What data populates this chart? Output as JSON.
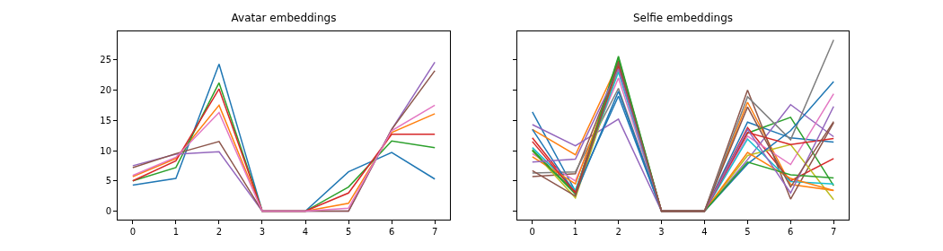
{
  "chart_data": [
    {
      "type": "line",
      "title": "Avatar embeddings",
      "x": [
        0,
        1,
        2,
        3,
        4,
        5,
        6,
        7
      ],
      "xlim": [
        -0.35,
        7.35
      ],
      "xticks": [
        0,
        1,
        2,
        3,
        4,
        5,
        6,
        7
      ],
      "ylim": [
        -1.4,
        29.7
      ],
      "yticks": [
        0,
        5,
        10,
        15,
        20,
        25
      ],
      "grid": false,
      "series": [
        {
          "color": "#1f77b4",
          "values": [
            4.3,
            5.4,
            24.3,
            0,
            0,
            6.5,
            9.7,
            5.3
          ]
        },
        {
          "color": "#ff7f0e",
          "values": [
            5.7,
            8.7,
            17.5,
            0,
            0,
            1.3,
            13,
            16.1
          ]
        },
        {
          "color": "#2ca02c",
          "values": [
            5,
            7.2,
            21.2,
            0,
            0,
            4,
            11.6,
            10.5
          ]
        },
        {
          "color": "#d62728",
          "values": [
            5,
            8.3,
            20.2,
            0,
            0,
            3,
            12.7,
            12.7
          ]
        },
        {
          "color": "#9467bd",
          "values": [
            7.5,
            9.4,
            9.8,
            0,
            0,
            0,
            13.5,
            24.6
          ]
        },
        {
          "color": "#8c564b",
          "values": [
            7.2,
            9.5,
            11.5,
            0,
            0,
            0,
            13.5,
            23.2
          ]
        },
        {
          "color": "#e377c2",
          "values": [
            5.9,
            8.9,
            16.3,
            0,
            0,
            0.5,
            13.3,
            17.5
          ]
        }
      ]
    },
    {
      "type": "line",
      "title": "Selfie embeddings",
      "x": [
        0,
        1,
        2,
        3,
        4,
        5,
        6,
        7
      ],
      "xlim": [
        -0.35,
        7.35
      ],
      "xticks": [
        0,
        1,
        2,
        3,
        4,
        5,
        6,
        7
      ],
      "ylim": [
        -1.4,
        29.7
      ],
      "yticks": [
        0,
        5,
        10,
        15,
        20,
        25
      ],
      "tick_labels": "x",
      "grid": false,
      "series": [
        {
          "color": "#1f77b4",
          "values": [
            16.4,
            3.3,
            19,
            0,
            0,
            14.7,
            12.1,
            11.4
          ]
        },
        {
          "color": "#ff7f0e",
          "values": [
            13.5,
            9.3,
            24.5,
            0,
            0,
            18,
            4.4,
            3.4
          ]
        },
        {
          "color": "#2ca02c",
          "values": [
            10.2,
            3,
            25.6,
            0,
            0,
            12.9,
            15.5,
            4.2
          ]
        },
        {
          "color": "#d62728",
          "values": [
            12.1,
            3.2,
            24.8,
            0,
            0,
            13.8,
            5,
            8.7
          ]
        },
        {
          "color": "#9467bd",
          "values": [
            14.3,
            10.8,
            15.2,
            0,
            0,
            8.5,
            17.6,
            12.3
          ]
        },
        {
          "color": "#8c564b",
          "values": [
            5.7,
            6.2,
            24,
            0,
            0,
            20,
            2,
            14.6
          ]
        },
        {
          "color": "#e377c2",
          "values": [
            9.5,
            5,
            22,
            0,
            0,
            12.4,
            7.7,
            19.4
          ]
        },
        {
          "color": "#7f7f7f",
          "values": [
            6.3,
            6.5,
            20.3,
            0,
            0,
            18.9,
            11.8,
            28.3
          ]
        },
        {
          "color": "#bcbd22",
          "values": [
            10,
            2.2,
            23.5,
            0,
            0,
            9.2,
            11,
            1.9
          ]
        },
        {
          "color": "#17becf",
          "values": [
            10.5,
            3.5,
            23,
            0,
            0,
            11.9,
            4.9,
            4.5
          ]
        },
        {
          "color": "#1f77b4",
          "values": [
            13.5,
            2.8,
            19.8,
            0,
            0,
            7.8,
            13.3,
            21.4
          ]
        },
        {
          "color": "#ff7f0e",
          "values": [
            9,
            4.5,
            24.2,
            0,
            0,
            9.7,
            5.4,
            3.4
          ]
        },
        {
          "color": "#2ca02c",
          "values": [
            10,
            2.8,
            25.3,
            0,
            0,
            8.1,
            6,
            5.5
          ]
        },
        {
          "color": "#d62728",
          "values": [
            11.5,
            3,
            24,
            0,
            0,
            13,
            11,
            12
          ]
        },
        {
          "color": "#9467bd",
          "values": [
            8.1,
            8.6,
            23.5,
            0,
            0,
            13.5,
            3,
            17.3
          ]
        },
        {
          "color": "#8c564b",
          "values": [
            6.7,
            2.5,
            24.5,
            0,
            0,
            17.2,
            4,
            14.8
          ]
        }
      ]
    }
  ]
}
